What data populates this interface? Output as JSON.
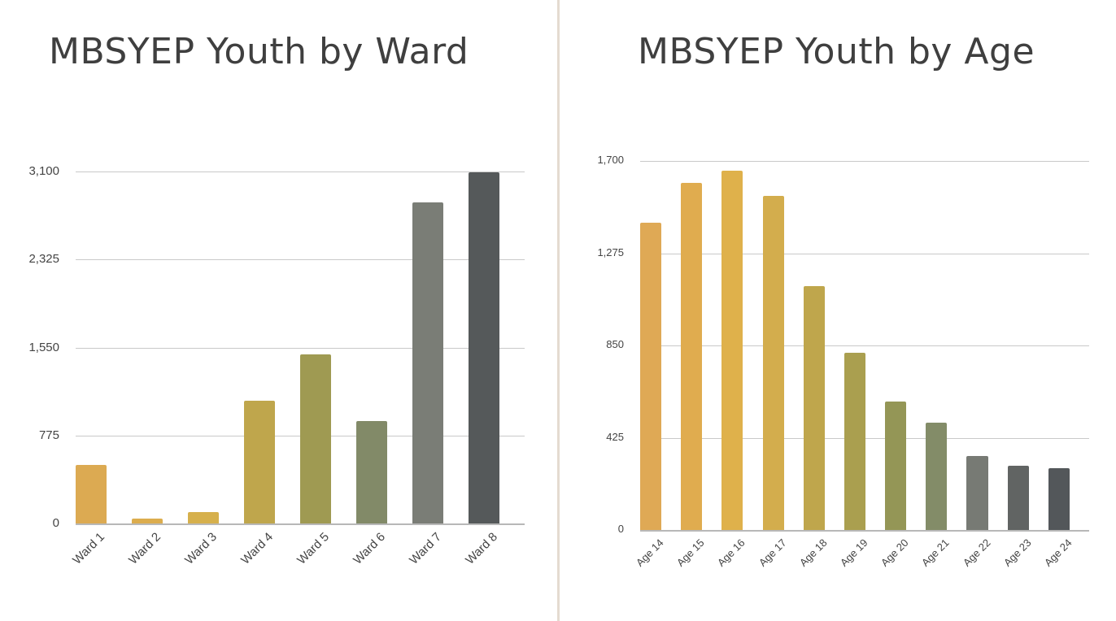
{
  "chart_data": [
    {
      "type": "bar",
      "title": "MBSYEP Youth by Ward",
      "xlabel": "",
      "ylabel": "",
      "categories": [
        "Ward 1",
        "Ward 2",
        "Ward 3",
        "Ward 4",
        "Ward 5",
        "Ward 6",
        "Ward 7",
        "Ward 8"
      ],
      "values": [
        515,
        45,
        100,
        1080,
        1490,
        900,
        2830,
        3095
      ],
      "colors": [
        "#dcaa52",
        "#dcad4e",
        "#d6b04c",
        "#bfa64c",
        "#9f9a52",
        "#828a68",
        "#7a7d76",
        "#55595a"
      ],
      "yticks": [
        "0",
        "775",
        "1,550",
        "2,325",
        "3,100"
      ],
      "ylim": [
        0,
        3100
      ],
      "grid": true,
      "legend": null
    },
    {
      "type": "bar",
      "title": "MBSYEP Youth by Age",
      "xlabel": "",
      "ylabel": "",
      "categories": [
        "Age 14",
        "Age 15",
        "Age 16",
        "Age 17",
        "Age 18",
        "Age 19",
        "Age 20",
        "Age 21",
        "Age 22",
        "Age 23",
        "Age 24"
      ],
      "values": [
        1415,
        1600,
        1655,
        1540,
        1125,
        815,
        590,
        495,
        340,
        295,
        285
      ],
      "colors": [
        "#dfa955",
        "#e0ac4f",
        "#dfb14b",
        "#d3ad4d",
        "#bfa64c",
        "#aa9f4f",
        "#949656",
        "#838c68",
        "#777a74",
        "#616463",
        "#53575a"
      ],
      "yticks": [
        "0",
        "425",
        "850",
        "1,275",
        "1,700"
      ],
      "ylim": [
        0,
        1700
      ],
      "grid": true,
      "legend": null
    }
  ]
}
